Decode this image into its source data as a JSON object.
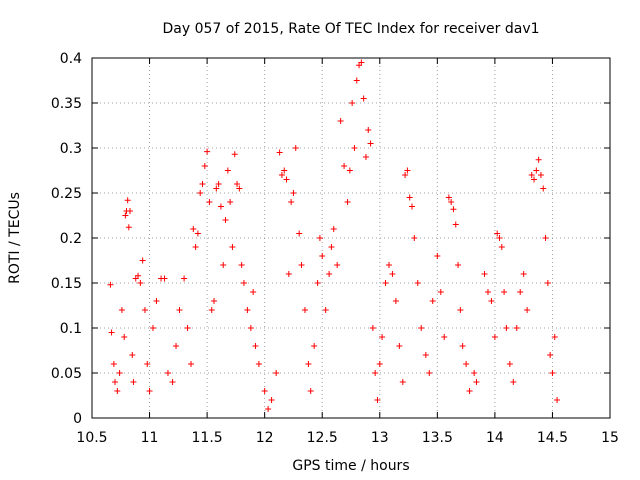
{
  "chart_data": {
    "type": "scatter",
    "title": "Day 057 of 2015, Rate Of TEC Index for receiver dav1",
    "xlabel": "GPS time / hours",
    "ylabel": "ROTI / TECUs",
    "xlim": [
      10.5,
      15
    ],
    "ylim": [
      0,
      0.4
    ],
    "grid": true,
    "marker": "plus",
    "marker_color": "#ff0000",
    "x_ticks": [
      10.5,
      11,
      11.5,
      12,
      12.5,
      13,
      13.5,
      14,
      14.5,
      15
    ],
    "x_tick_labels": [
      "10.5",
      "11",
      "11.5",
      "12",
      "12.5",
      "13",
      "13.5",
      "14",
      "14.5",
      "15"
    ],
    "y_ticks": [
      0,
      0.05,
      0.1,
      0.15,
      0.2,
      0.25,
      0.3,
      0.35,
      0.4
    ],
    "y_tick_labels": [
      "0",
      "0.05",
      "0.1",
      "0.15",
      "0.2",
      "0.25",
      "0.3",
      "0.35",
      "0.4"
    ],
    "series": [
      {
        "name": "ROTI",
        "points": [
          [
            10.66,
            0.148
          ],
          [
            10.67,
            0.095
          ],
          [
            10.69,
            0.06
          ],
          [
            10.7,
            0.04
          ],
          [
            10.72,
            0.03
          ],
          [
            10.74,
            0.05
          ],
          [
            10.76,
            0.12
          ],
          [
            10.78,
            0.09
          ],
          [
            10.79,
            0.225
          ],
          [
            10.8,
            0.23
          ],
          [
            10.81,
            0.242
          ],
          [
            10.82,
            0.212
          ],
          [
            10.83,
            0.23
          ],
          [
            10.85,
            0.07
          ],
          [
            10.86,
            0.04
          ],
          [
            10.88,
            0.155
          ],
          [
            10.9,
            0.158
          ],
          [
            10.92,
            0.15
          ],
          [
            10.94,
            0.175
          ],
          [
            10.96,
            0.12
          ],
          [
            10.98,
            0.06
          ],
          [
            11.0,
            0.03
          ],
          [
            11.03,
            0.1
          ],
          [
            11.06,
            0.13
          ],
          [
            11.1,
            0.155
          ],
          [
            11.13,
            0.155
          ],
          [
            11.16,
            0.05
          ],
          [
            11.2,
            0.04
          ],
          [
            11.23,
            0.08
          ],
          [
            11.26,
            0.12
          ],
          [
            11.3,
            0.155
          ],
          [
            11.33,
            0.1
          ],
          [
            11.36,
            0.06
          ],
          [
            11.38,
            0.21
          ],
          [
            11.4,
            0.19
          ],
          [
            11.42,
            0.205
          ],
          [
            11.44,
            0.25
          ],
          [
            11.46,
            0.26
          ],
          [
            11.48,
            0.28
          ],
          [
            11.5,
            0.296
          ],
          [
            11.52,
            0.24
          ],
          [
            11.54,
            0.12
          ],
          [
            11.56,
            0.13
          ],
          [
            11.58,
            0.255
          ],
          [
            11.6,
            0.26
          ],
          [
            11.62,
            0.235
          ],
          [
            11.64,
            0.17
          ],
          [
            11.66,
            0.22
          ],
          [
            11.68,
            0.275
          ],
          [
            11.7,
            0.24
          ],
          [
            11.72,
            0.19
          ],
          [
            11.74,
            0.293
          ],
          [
            11.76,
            0.26
          ],
          [
            11.78,
            0.255
          ],
          [
            11.8,
            0.17
          ],
          [
            11.82,
            0.15
          ],
          [
            11.85,
            0.12
          ],
          [
            11.88,
            0.1
          ],
          [
            11.9,
            0.14
          ],
          [
            11.92,
            0.08
          ],
          [
            11.95,
            0.06
          ],
          [
            12.0,
            0.03
          ],
          [
            12.03,
            0.01
          ],
          [
            12.06,
            0.02
          ],
          [
            12.1,
            0.05
          ],
          [
            12.13,
            0.295
          ],
          [
            12.15,
            0.27
          ],
          [
            12.17,
            0.275
          ],
          [
            12.19,
            0.265
          ],
          [
            12.21,
            0.16
          ],
          [
            12.23,
            0.24
          ],
          [
            12.25,
            0.25
          ],
          [
            12.27,
            0.3
          ],
          [
            12.3,
            0.205
          ],
          [
            12.32,
            0.17
          ],
          [
            12.35,
            0.12
          ],
          [
            12.38,
            0.06
          ],
          [
            12.4,
            0.03
          ],
          [
            12.43,
            0.08
          ],
          [
            12.46,
            0.15
          ],
          [
            12.48,
            0.2
          ],
          [
            12.5,
            0.18
          ],
          [
            12.53,
            0.12
          ],
          [
            12.56,
            0.16
          ],
          [
            12.58,
            0.19
          ],
          [
            12.6,
            0.21
          ],
          [
            12.63,
            0.17
          ],
          [
            12.66,
            0.33
          ],
          [
            12.69,
            0.28
          ],
          [
            12.72,
            0.24
          ],
          [
            12.74,
            0.275
          ],
          [
            12.76,
            0.35
          ],
          [
            12.78,
            0.3
          ],
          [
            12.8,
            0.375
          ],
          [
            12.82,
            0.392
          ],
          [
            12.84,
            0.395
          ],
          [
            12.86,
            0.355
          ],
          [
            12.88,
            0.29
          ],
          [
            12.9,
            0.32
          ],
          [
            12.92,
            0.305
          ],
          [
            12.94,
            0.1
          ],
          [
            12.96,
            0.05
          ],
          [
            12.98,
            0.02
          ],
          [
            13.0,
            0.06
          ],
          [
            13.02,
            0.09
          ],
          [
            13.05,
            0.15
          ],
          [
            13.08,
            0.17
          ],
          [
            13.11,
            0.16
          ],
          [
            13.14,
            0.13
          ],
          [
            13.17,
            0.08
          ],
          [
            13.2,
            0.04
          ],
          [
            13.22,
            0.27
          ],
          [
            13.24,
            0.275
          ],
          [
            13.26,
            0.245
          ],
          [
            13.28,
            0.235
          ],
          [
            13.3,
            0.2
          ],
          [
            13.33,
            0.15
          ],
          [
            13.36,
            0.1
          ],
          [
            13.4,
            0.07
          ],
          [
            13.43,
            0.05
          ],
          [
            13.46,
            0.13
          ],
          [
            13.5,
            0.18
          ],
          [
            13.53,
            0.14
          ],
          [
            13.56,
            0.09
          ],
          [
            13.6,
            0.245
          ],
          [
            13.62,
            0.24
          ],
          [
            13.64,
            0.232
          ],
          [
            13.66,
            0.215
          ],
          [
            13.68,
            0.17
          ],
          [
            13.7,
            0.12
          ],
          [
            13.72,
            0.08
          ],
          [
            13.75,
            0.06
          ],
          [
            13.78,
            0.03
          ],
          [
            13.82,
            0.05
          ],
          [
            13.84,
            0.04
          ],
          [
            13.91,
            0.16
          ],
          [
            13.94,
            0.14
          ],
          [
            13.97,
            0.13
          ],
          [
            14.0,
            0.09
          ],
          [
            14.02,
            0.205
          ],
          [
            14.04,
            0.2
          ],
          [
            14.06,
            0.19
          ],
          [
            14.08,
            0.14
          ],
          [
            14.1,
            0.1
          ],
          [
            14.13,
            0.06
          ],
          [
            14.16,
            0.04
          ],
          [
            14.19,
            0.1
          ],
          [
            14.22,
            0.14
          ],
          [
            14.25,
            0.16
          ],
          [
            14.28,
            0.12
          ],
          [
            14.32,
            0.27
          ],
          [
            14.34,
            0.265
          ],
          [
            14.36,
            0.275
          ],
          [
            14.38,
            0.287
          ],
          [
            14.4,
            0.27
          ],
          [
            14.42,
            0.255
          ],
          [
            14.44,
            0.2
          ],
          [
            14.46,
            0.15
          ],
          [
            14.48,
            0.07
          ],
          [
            14.5,
            0.05
          ],
          [
            14.52,
            0.09
          ],
          [
            14.54,
            0.02
          ]
        ]
      }
    ]
  }
}
